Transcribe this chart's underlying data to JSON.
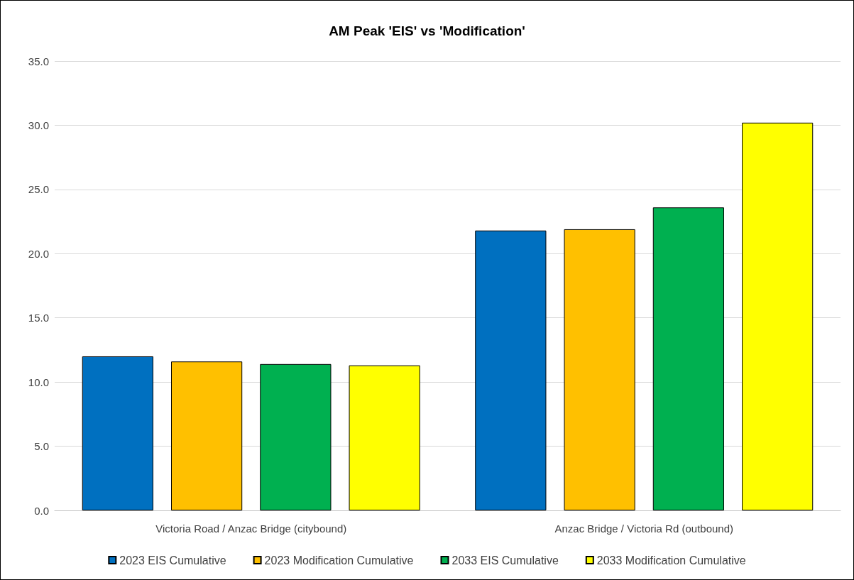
{
  "chart_data": {
    "type": "bar",
    "title": "AM Peak 'EIS' vs 'Modification'",
    "categories": [
      "Victoria Road / Anzac Bridge (citybound)",
      "Anzac Bridge / Victoria Rd (outbound)"
    ],
    "series": [
      {
        "name": "2023 EIS Cumulative",
        "color": "#0070c0",
        "values": [
          12.0,
          21.8
        ]
      },
      {
        "name": "2023 Modification Cumulative",
        "color": "#ffc000",
        "values": [
          11.6,
          21.9
        ]
      },
      {
        "name": "2033 EIS Cumulative",
        "color": "#00b050",
        "values": [
          11.4,
          23.6
        ]
      },
      {
        "name": "2033 Modification Cumulative",
        "color": "#ffff00",
        "values": [
          11.3,
          30.2
        ]
      }
    ],
    "ylim": [
      0,
      35
    ],
    "yticks": [
      {
        "value": 0,
        "label": "0.0"
      },
      {
        "value": 5,
        "label": "5.0"
      },
      {
        "value": 10,
        "label": "10.0"
      },
      {
        "value": 15,
        "label": "15.0"
      },
      {
        "value": 20,
        "label": "20.0"
      },
      {
        "value": 25,
        "label": "25.0"
      },
      {
        "value": 30,
        "label": "30.0"
      },
      {
        "value": 35,
        "label": "35.0"
      }
    ],
    "grid": true,
    "legend": "bottom"
  }
}
